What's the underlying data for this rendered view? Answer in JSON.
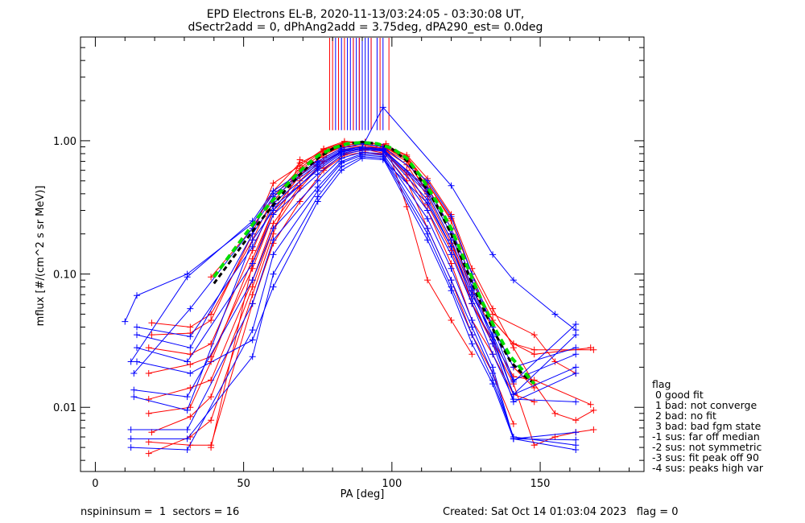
{
  "chart_data": {
    "type": "line",
    "title": "EPD Electrons EL-B, 2020-11-13/03:24:05 - 03:30:08 UT,",
    "subtitle": "dSectr2add = 0, dPhAng2add = 3.75deg, dPA290_est=    0.0deg",
    "xlabel": "PA [deg]",
    "ylabel": "mflux [#/(cm^2 s sr MeV)]",
    "xlim": [
      -5,
      185
    ],
    "ylim": [
      0.0033,
      6.0
    ],
    "yscale": "log",
    "x_ticks": [
      0,
      50,
      100,
      150
    ],
    "y_ticks": [
      0.01,
      0.1,
      1.0
    ],
    "y_tick_labels": [
      "0.01",
      "0.10",
      "1.00"
    ],
    "colors": {
      "red": "#ff0000",
      "blue": "#0000ff",
      "green": "#00dd00",
      "black": "#000000"
    },
    "series": [
      {
        "color": "red",
        "x": [
          39,
          53,
          60,
          69,
          77,
          84,
          91,
          98,
          105,
          112,
          120,
          127,
          134,
          141,
          148,
          155,
          162,
          168
        ],
        "values": [
          0.095,
          0.22,
          0.42,
          0.68,
          0.84,
          0.96,
          0.98,
          0.92,
          0.78,
          0.52,
          0.28,
          0.11,
          0.055,
          0.028,
          0.015,
          0.009,
          0.008,
          0.0095
        ]
      },
      {
        "color": "red",
        "x": [
          39,
          53,
          60,
          69,
          77,
          84,
          91,
          98,
          105,
          112,
          120,
          127,
          134,
          141,
          148,
          155,
          162,
          168
        ],
        "values": [
          0.005,
          0.12,
          0.3,
          0.55,
          0.8,
          0.92,
          0.9,
          0.88,
          0.72,
          0.4,
          0.18,
          0.06,
          0.03,
          0.015,
          0.0052,
          0.006,
          0.0065,
          0.0068
        ]
      },
      {
        "color": "red",
        "x": [
          19,
          32,
          39,
          53,
          60,
          69,
          77,
          84,
          91,
          98,
          105,
          112,
          120,
          127,
          134,
          141,
          148,
          168
        ],
        "values": [
          0.043,
          0.04,
          0.05,
          0.18,
          0.38,
          0.62,
          0.86,
          0.97,
          0.95,
          0.9,
          0.74,
          0.45,
          0.22,
          0.09,
          0.045,
          0.03,
          0.027,
          0.027
        ]
      },
      {
        "color": "red",
        "x": [
          18,
          32,
          39,
          53,
          60,
          69,
          77,
          84,
          91,
          98,
          105,
          112,
          120,
          127,
          134,
          141,
          148,
          167
        ],
        "values": [
          0.028,
          0.025,
          0.03,
          0.15,
          0.35,
          0.6,
          0.82,
          0.94,
          0.93,
          0.86,
          0.7,
          0.42,
          0.2,
          0.075,
          0.045,
          0.03,
          0.025,
          0.028
        ]
      },
      {
        "color": "red",
        "x": [
          18,
          32,
          39,
          53,
          60,
          69,
          77,
          84,
          91,
          98,
          105,
          112,
          120,
          127,
          134,
          141,
          148,
          167
        ],
        "values": [
          0.018,
          0.021,
          0.024,
          0.11,
          0.28,
          0.5,
          0.75,
          0.9,
          0.88,
          0.82,
          0.6,
          0.33,
          0.15,
          0.06,
          0.032,
          0.017,
          0.016,
          0.0105
        ]
      },
      {
        "color": "red",
        "x": [
          18,
          32,
          39,
          53,
          60,
          69,
          77,
          84,
          91,
          98,
          105,
          112,
          120,
          127,
          134,
          141,
          148
        ],
        "values": [
          0.0115,
          0.014,
          0.016,
          0.09,
          0.24,
          0.46,
          0.7,
          0.85,
          0.86,
          0.8,
          0.56,
          0.3,
          0.12,
          0.045,
          0.025,
          0.0125,
          0.011
        ]
      },
      {
        "color": "red",
        "x": [
          18,
          32,
          39,
          53,
          60,
          69,
          77,
          84,
          91,
          98,
          105,
          112,
          120,
          127
        ],
        "values": [
          0.0045,
          0.006,
          0.008,
          0.07,
          0.2,
          0.72,
          0.62,
          0.8,
          0.85,
          0.95,
          0.32,
          0.09,
          0.045,
          0.025
        ]
      },
      {
        "color": "red",
        "x": [
          18,
          32,
          39,
          53,
          60,
          69,
          77,
          84,
          91,
          98,
          105,
          112,
          120,
          127,
          134,
          141
        ],
        "values": [
          0.0055,
          0.0052,
          0.0052,
          0.06,
          0.17,
          0.35,
          0.6,
          0.78,
          0.82,
          0.78,
          0.5,
          0.22,
          0.09,
          0.035,
          0.018,
          0.0075
        ]
      },
      {
        "color": "red",
        "x": [
          19,
          32,
          39,
          53,
          60,
          69,
          77,
          84,
          91,
          98,
          105,
          112,
          120,
          127,
          134,
          141,
          148
        ],
        "values": [
          0.0065,
          0.0085,
          0.012,
          0.08,
          0.22,
          0.44,
          0.7,
          0.86,
          0.9,
          0.84,
          0.66,
          0.38,
          0.17,
          0.07,
          0.04,
          0.02,
          0.014
        ]
      },
      {
        "color": "red",
        "x": [
          19,
          32,
          39,
          53,
          60,
          69,
          77,
          84,
          91,
          98,
          105,
          112,
          120,
          127,
          134,
          148,
          155,
          162
        ],
        "values": [
          0.035,
          0.036,
          0.045,
          0.2,
          0.48,
          0.65,
          0.87,
          0.99,
          0.97,
          0.93,
          0.76,
          0.48,
          0.25,
          0.1,
          0.05,
          0.035,
          0.022,
          0.018
        ]
      },
      {
        "color": "red",
        "x": [
          18,
          32,
          39,
          53,
          60,
          69,
          77,
          84,
          91,
          98,
          105,
          112,
          120
        ],
        "values": [
          0.009,
          0.01,
          0.022,
          0.13,
          0.3,
          0.55,
          0.78,
          0.92,
          0.9,
          0.88,
          0.74,
          0.48,
          0.26
        ]
      },
      {
        "color": "blue",
        "x": [
          10,
          14,
          31,
          53,
          60,
          75,
          83,
          90,
          97,
          120,
          134,
          141,
          155,
          162
        ],
        "values": [
          0.044,
          0.069,
          0.1,
          0.24,
          0.4,
          0.68,
          0.86,
          0.9,
          1.78,
          0.46,
          0.14,
          0.09,
          0.05,
          0.038
        ]
      },
      {
        "color": "blue",
        "x": [
          12,
          31,
          53,
          60,
          75,
          83,
          90,
          97,
          112,
          120,
          127,
          134,
          141,
          162
        ],
        "values": [
          0.022,
          0.095,
          0.25,
          0.42,
          0.7,
          0.88,
          0.95,
          0.9,
          0.5,
          0.27,
          0.1,
          0.04,
          0.02,
          0.028
        ]
      },
      {
        "color": "blue",
        "x": [
          13,
          32,
          53,
          60,
          75,
          83,
          90,
          97,
          112,
          120,
          127,
          134,
          141,
          162
        ],
        "values": [
          0.018,
          0.055,
          0.22,
          0.38,
          0.66,
          0.84,
          0.9,
          0.87,
          0.42,
          0.2,
          0.08,
          0.034,
          0.0125,
          0.035
        ]
      },
      {
        "color": "blue",
        "x": [
          14,
          32,
          53,
          60,
          75,
          83,
          90,
          97,
          112,
          120,
          127,
          134,
          141,
          162
        ],
        "values": [
          0.04,
          0.034,
          0.16,
          0.32,
          0.6,
          0.8,
          0.87,
          0.85,
          0.36,
          0.16,
          0.065,
          0.03,
          0.011,
          0.018
        ]
      },
      {
        "color": "blue",
        "x": [
          14,
          31,
          53,
          60,
          75,
          83,
          90,
          97,
          112,
          120,
          127,
          134,
          141,
          162
        ],
        "values": [
          0.028,
          0.022,
          0.12,
          0.28,
          0.56,
          0.78,
          0.85,
          0.84,
          0.3,
          0.14,
          0.06,
          0.025,
          0.0115,
          0.011
        ]
      },
      {
        "color": "blue",
        "x": [
          13,
          31,
          53,
          60,
          75,
          83,
          90,
          97,
          112,
          120,
          127,
          134,
          141,
          162
        ],
        "values": [
          0.0135,
          0.012,
          0.09,
          0.22,
          0.5,
          0.74,
          0.82,
          0.8,
          0.26,
          0.11,
          0.045,
          0.02,
          0.0058,
          0.0057
        ]
      },
      {
        "color": "blue",
        "x": [
          12,
          31,
          53,
          60,
          75,
          83,
          90,
          97,
          112,
          120,
          127,
          134,
          141,
          162
        ],
        "values": [
          0.0068,
          0.0068,
          0.06,
          0.18,
          0.45,
          0.7,
          0.8,
          0.78,
          0.22,
          0.09,
          0.04,
          0.018,
          0.0058,
          0.0048
        ]
      },
      {
        "color": "blue",
        "x": [
          12,
          31,
          53,
          60,
          75,
          83,
          90,
          97,
          112,
          120,
          127,
          134,
          141,
          162
        ],
        "values": [
          0.005,
          0.0048,
          0.038,
          0.14,
          0.42,
          0.68,
          0.78,
          0.76,
          0.2,
          0.08,
          0.035,
          0.016,
          0.006,
          0.0052
        ]
      },
      {
        "color": "blue",
        "x": [
          12,
          31,
          53,
          60,
          75,
          83,
          90,
          97,
          112,
          120,
          127,
          134,
          141,
          162
        ],
        "values": [
          0.0058,
          0.0058,
          0.024,
          0.1,
          0.38,
          0.64,
          0.76,
          0.74,
          0.18,
          0.075,
          0.03,
          0.015,
          0.0058,
          0.0065
        ]
      },
      {
        "color": "blue",
        "x": [
          14,
          32,
          53,
          60,
          75,
          83,
          90,
          97,
          112,
          120,
          127,
          134,
          141,
          162
        ],
        "values": [
          0.022,
          0.018,
          0.032,
          0.08,
          0.35,
          0.6,
          0.74,
          0.72,
          0.34,
          0.16,
          0.07,
          0.035,
          0.0155,
          0.042
        ]
      },
      {
        "color": "blue",
        "x": [
          13,
          31,
          53,
          60,
          75,
          83,
          90,
          97,
          112,
          120,
          127,
          134,
          141,
          162
        ],
        "values": [
          0.012,
          0.0095,
          0.18,
          0.3,
          0.62,
          0.82,
          0.88,
          0.86,
          0.4,
          0.18,
          0.075,
          0.032,
          0.0125,
          0.02
        ]
      },
      {
        "color": "blue",
        "x": [
          14,
          32,
          53,
          60,
          75,
          83,
          90,
          97,
          112,
          120,
          127,
          134,
          141,
          162
        ],
        "values": [
          0.035,
          0.028,
          0.2,
          0.34,
          0.64,
          0.83,
          0.88,
          0.86,
          0.44,
          0.22,
          0.09,
          0.04,
          0.016,
          0.025
        ]
      }
    ],
    "fit_black": {
      "x": [
        40,
        45,
        50,
        55,
        60,
        65,
        70,
        75,
        80,
        85,
        90,
        95,
        100,
        105,
        110,
        115,
        120,
        125,
        130,
        135,
        140,
        145,
        148
      ],
      "values": [
        0.085,
        0.12,
        0.17,
        0.24,
        0.33,
        0.45,
        0.59,
        0.74,
        0.87,
        0.95,
        0.98,
        0.95,
        0.87,
        0.71,
        0.5,
        0.33,
        0.2,
        0.11,
        0.06,
        0.035,
        0.022,
        0.017,
        0.015
      ]
    },
    "fit_green": {
      "x": [
        40,
        45,
        50,
        55,
        60,
        65,
        70,
        75,
        80,
        85,
        90,
        95,
        100,
        105,
        110,
        115,
        120,
        125,
        130,
        135,
        140,
        145,
        148
      ],
      "values": [
        0.095,
        0.135,
        0.19,
        0.27,
        0.36,
        0.48,
        0.62,
        0.77,
        0.88,
        0.95,
        0.97,
        0.95,
        0.88,
        0.74,
        0.53,
        0.35,
        0.22,
        0.12,
        0.065,
        0.038,
        0.024,
        0.018,
        0.015
      ]
    },
    "vlines": {
      "blue": [
        81,
        83,
        85,
        86,
        87,
        88,
        89,
        90,
        91,
        92,
        93,
        95,
        97
      ],
      "red": [
        79,
        80,
        82,
        84,
        87,
        89,
        93,
        96,
        99
      ],
      "y_from": 1.2
    },
    "legend": {
      "position": "right",
      "title": "flag",
      "items": [
        " 0 good fit",
        " 1 bad: not converge",
        " 2 bad: no fit",
        " 3 bad: bad fgm state",
        "-1 sus: far off median",
        "-2 sus: not symmetric",
        "-3 sus: fit peak off 90",
        "-4 sus: peaks high var"
      ]
    }
  },
  "footer": {
    "left": "nspininsum =  1  sectors = 16",
    "right": "Created: Sat Oct 14 01:03:04 2023   flag = 0"
  }
}
